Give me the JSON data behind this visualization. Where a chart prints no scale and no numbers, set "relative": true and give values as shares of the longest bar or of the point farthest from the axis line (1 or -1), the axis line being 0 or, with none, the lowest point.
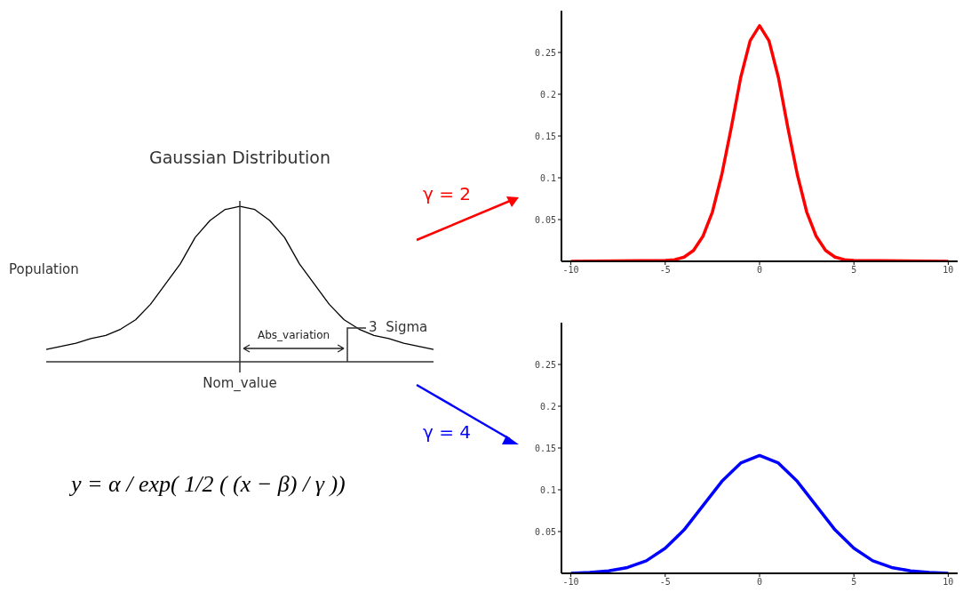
{
  "chart_data": [
    {
      "type": "line",
      "title": "Gaussian Distribution",
      "xlabel": "Nom_value",
      "ylabel": "Population",
      "relative": true,
      "categories": [
        null,
        null,
        null,
        null,
        null,
        null,
        null,
        null,
        null,
        null,
        null,
        null,
        null,
        null,
        null,
        null,
        null,
        null,
        null,
        null,
        null,
        null,
        null,
        null,
        null,
        null,
        null
      ],
      "series": [
        {
          "color": "#000000",
          "values": [
            0.08,
            0.1,
            0.12,
            0.15,
            0.17,
            0.21,
            0.27,
            0.37,
            0.5,
            0.63,
            0.8,
            0.91,
            0.98,
            1,
            0.98,
            0.91,
            0.8,
            0.63,
            0.5,
            0.37,
            0.27,
            0.21,
            0.17,
            0.15,
            0.12,
            0.1,
            0.08
          ]
        }
      ],
      "annotations": [
        "Abs_variation",
        "3  Sigma",
        "y = α / exp( 1/2 ( (x − β) / γ ))"
      ]
    },
    {
      "type": "line",
      "xlim": [
        -10.5,
        10.5
      ],
      "ylim": [
        0,
        0.3
      ],
      "xticks": [
        -10,
        -5,
        0,
        5,
        10
      ],
      "yticks": [
        0.05,
        0.1,
        0.15,
        0.2,
        0.25
      ],
      "x": [
        -10,
        -5,
        -4.5,
        -4,
        -3.5,
        -3,
        -2.5,
        -2,
        -1.5,
        -1,
        -0.5,
        0,
        0.5,
        1,
        1.5,
        2,
        2.5,
        3,
        3.5,
        4,
        4.5,
        5,
        10
      ],
      "series": [
        {
          "name": "γ = 2",
          "color": "#ff0000",
          "values": [
            0,
            0.001,
            0.002,
            0.005,
            0.013,
            0.03,
            0.059,
            0.104,
            0.16,
            0.22,
            0.264,
            0.282,
            0.264,
            0.22,
            0.16,
            0.104,
            0.059,
            0.03,
            0.013,
            0.005,
            0.002,
            0.001,
            0
          ]
        }
      ]
    },
    {
      "type": "line",
      "xlim": [
        -10.5,
        10.5
      ],
      "ylim": [
        0,
        0.3
      ],
      "xticks": [
        -10,
        -5,
        0,
        5,
        10
      ],
      "yticks": [
        0.05,
        0.1,
        0.15,
        0.2,
        0.25
      ],
      "x": [
        -10,
        -9,
        -8,
        -7,
        -6,
        -5,
        -4,
        -3,
        -2,
        -1,
        0,
        1,
        2,
        3,
        4,
        5,
        6,
        7,
        8,
        9,
        10
      ],
      "series": [
        {
          "name": "γ = 4",
          "color": "#0000ff",
          "values": [
            0,
            0.001,
            0.003,
            0.007,
            0.015,
            0.03,
            0.052,
            0.081,
            0.11,
            0.132,
            0.141,
            0.132,
            0.11,
            0.081,
            0.052,
            0.03,
            0.015,
            0.007,
            0.003,
            0.001,
            0
          ]
        }
      ]
    }
  ]
}
